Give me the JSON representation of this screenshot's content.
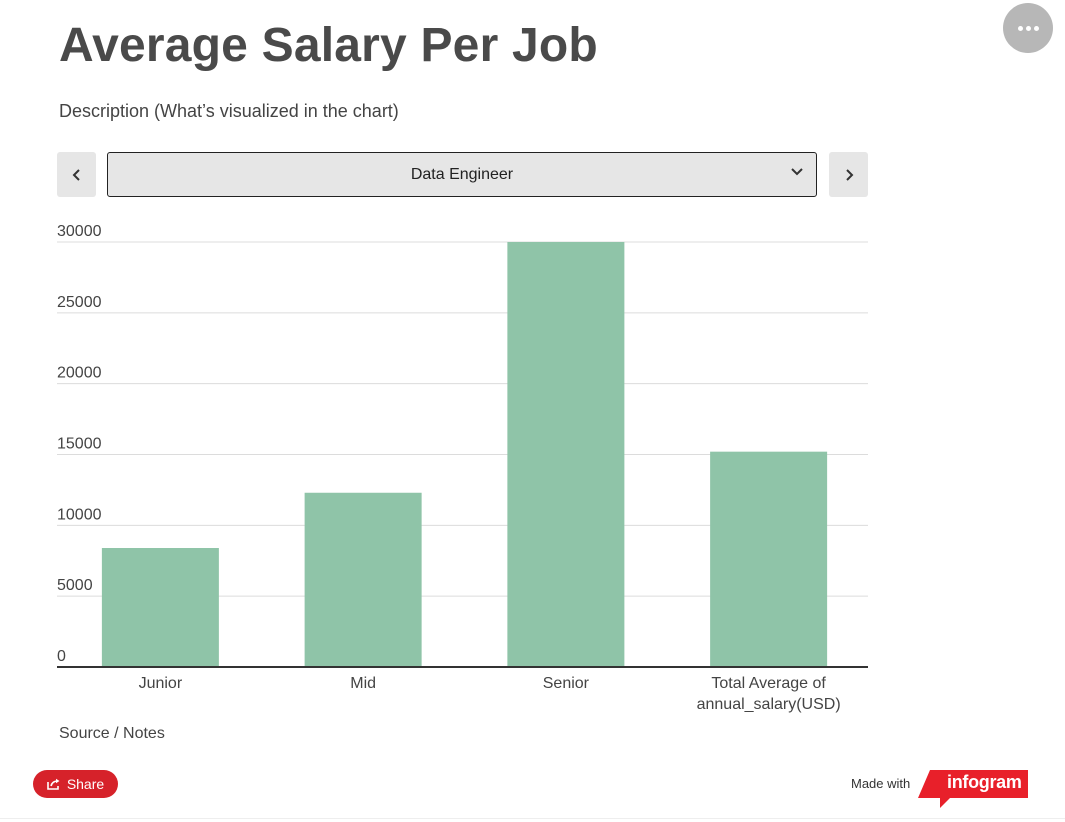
{
  "title": "Average Salary Per Job",
  "subtitle": "Description (What’s visualized in the chart)",
  "selector": {
    "selected": "Data Engineer"
  },
  "source_notes": "Source / Notes",
  "share_label": "Share",
  "made_with": "Made with",
  "brand": "infogram",
  "colors": {
    "bar": "#8fc4a8",
    "share": "#d6222a",
    "brand": "#e8202a"
  },
  "chart_data": {
    "type": "bar",
    "categories": [
      "Junior",
      "Mid",
      "Senior",
      "Total Average of annual_salary(USD)"
    ],
    "category_lines": [
      [
        "Junior"
      ],
      [
        "Mid"
      ],
      [
        "Senior"
      ],
      [
        "Total Average of",
        "annual_salary(USD)"
      ]
    ],
    "values": [
      8400,
      12300,
      30000,
      15200
    ],
    "y_ticks": [
      0,
      5000,
      10000,
      15000,
      20000,
      25000,
      30000
    ],
    "ylim": [
      0,
      30000
    ],
    "grid": true,
    "legend": "none",
    "xlabel": "",
    "ylabel": ""
  }
}
